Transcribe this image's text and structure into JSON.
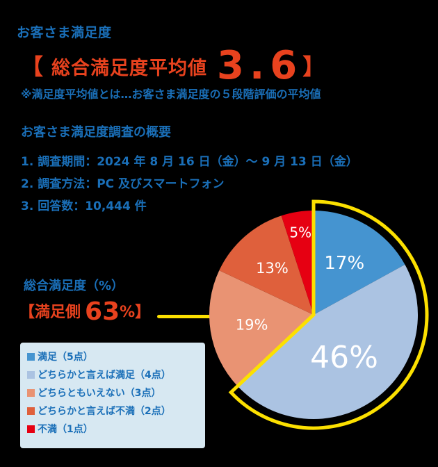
{
  "header": {
    "subtitle": "お客さま満足度",
    "avg_bracket_open": "【",
    "avg_label": "総合満足度平均値",
    "avg_value": "3.6",
    "avg_bracket_close": "】",
    "note": "※満足度平均値とは…お客さま満足度の５段階評価の平均値"
  },
  "summary": {
    "title": "お客さま満足度調査の概要",
    "items": [
      "1. 調査期間：2024 年 8 月 16 日（金）～ 9 月 13 日（金）",
      "2. 調査方法：PC 及びスマートフォン",
      "3. 回答数：10,444 件"
    ]
  },
  "overall": {
    "title": "総合満足度（%）",
    "satisfied_prefix": "【満足側",
    "satisfied_value": "63",
    "satisfied_pct": "%",
    "satisfied_suffix": "】"
  },
  "colors": {
    "accent_blue": "#1a6fb8",
    "accent_red": "#e8421e",
    "highlight_yellow": "#fce000",
    "legend_bg": "#d7e8f2"
  },
  "chart_data": {
    "type": "pie",
    "title": "総合満足度（%）",
    "categories": [
      "満足（5点）",
      "どちらかと言えば満足（4点）",
      "どちらともいえない（3点）",
      "どちらかと言えば不満（2点）",
      "不満（1点）"
    ],
    "values": [
      17,
      46,
      19,
      13,
      5
    ],
    "labels": [
      "17%",
      "46%",
      "19%",
      "13%",
      "5%"
    ],
    "colors": [
      "#4594d0",
      "#abc3e2",
      "#e99373",
      "#df603c",
      "#e60012"
    ],
    "start_angle": "12 o'clock, clockwise",
    "highlight": {
      "slices": [
        "満足（5点）",
        "どちらかと言えば満足（4点）"
      ],
      "total": "63%",
      "outline_color": "#fce000"
    },
    "legend_position": "bottom-left"
  },
  "legend": {
    "items": [
      {
        "label": "満足（5点）",
        "color": "#4594d0"
      },
      {
        "label": "どちらかと言えば満足（4点）",
        "color": "#abc3e2"
      },
      {
        "label": "どちらともいえない（3点）",
        "color": "#e99373"
      },
      {
        "label": "どちらかと言えば不満（2点）",
        "color": "#df603c"
      },
      {
        "label": "不満（1点）",
        "color": "#e60012"
      }
    ]
  }
}
